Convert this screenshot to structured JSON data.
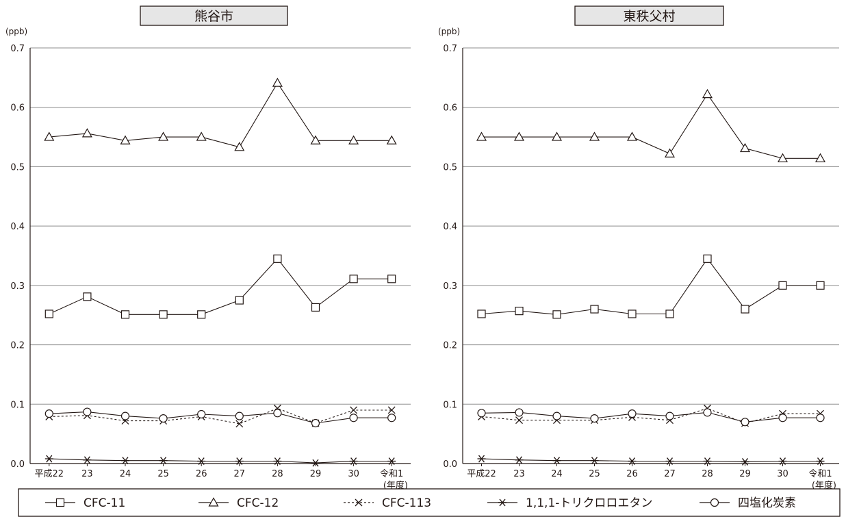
{
  "chart_data": [
    {
      "type": "line",
      "title": "熊谷市",
      "unit_label": "(ppb)",
      "xunit_label": "(年度)",
      "categories": [
        "平成22",
        "23",
        "24",
        "25",
        "26",
        "27",
        "28",
        "29",
        "30",
        "令和1"
      ],
      "ylim": [
        0,
        0.7
      ],
      "yticks": [
        "0.0",
        "0.1",
        "0.2",
        "0.3",
        "0.4",
        "0.5",
        "0.6",
        "0.7"
      ],
      "grid": true,
      "series": [
        {
          "name": "CFC-11",
          "marker": "square",
          "dash": "solid",
          "values": [
            0.252,
            0.281,
            0.251,
            0.251,
            0.251,
            0.275,
            0.345,
            0.263,
            0.311,
            0.311
          ]
        },
        {
          "name": "CFC-12",
          "marker": "triangle",
          "dash": "solid",
          "values": [
            0.55,
            0.556,
            0.544,
            0.55,
            0.55,
            0.533,
            0.641,
            0.544,
            0.544,
            0.544
          ]
        },
        {
          "name": "CFC-113",
          "marker": "cross",
          "dash": "dotted",
          "values": [
            0.079,
            0.081,
            0.072,
            0.072,
            0.079,
            0.067,
            0.093,
            0.068,
            0.09,
            0.09
          ]
        },
        {
          "name": "1,1,1-トリクロロエタン",
          "marker": "asterisk",
          "dash": "solid",
          "values": [
            0.008,
            0.006,
            0.005,
            0.005,
            0.004,
            0.004,
            0.004,
            0.001,
            0.004,
            0.004
          ]
        },
        {
          "name": "四塩化炭素",
          "marker": "circle",
          "dash": "solid",
          "values": [
            0.084,
            0.087,
            0.08,
            0.076,
            0.083,
            0.08,
            0.085,
            0.068,
            0.077,
            0.077
          ]
        }
      ]
    },
    {
      "type": "line",
      "title": "東秩父村",
      "unit_label": "(ppb)",
      "xunit_label": "(年度)",
      "categories": [
        "平成22",
        "23",
        "24",
        "25",
        "26",
        "27",
        "28",
        "29",
        "30",
        "令和1"
      ],
      "ylim": [
        0,
        0.7
      ],
      "yticks": [
        "0.0",
        "0.1",
        "0.2",
        "0.3",
        "0.4",
        "0.5",
        "0.6",
        "0.7"
      ],
      "grid": true,
      "series": [
        {
          "name": "CFC-11",
          "marker": "square",
          "dash": "solid",
          "values": [
            0.252,
            0.257,
            0.251,
            0.26,
            0.252,
            0.252,
            0.345,
            0.26,
            0.3,
            0.3
          ]
        },
        {
          "name": "CFC-12",
          "marker": "triangle",
          "dash": "solid",
          "values": [
            0.55,
            0.55,
            0.55,
            0.55,
            0.55,
            0.522,
            0.622,
            0.531,
            0.514,
            0.514
          ]
        },
        {
          "name": "CFC-113",
          "marker": "cross",
          "dash": "dotted",
          "values": [
            0.079,
            0.073,
            0.073,
            0.073,
            0.078,
            0.073,
            0.093,
            0.068,
            0.084,
            0.084
          ]
        },
        {
          "name": "1,1,1-トリクロロエタン",
          "marker": "asterisk",
          "dash": "solid",
          "values": [
            0.008,
            0.006,
            0.005,
            0.005,
            0.004,
            0.004,
            0.004,
            0.003,
            0.004,
            0.004
          ]
        },
        {
          "name": "四塩化炭素",
          "marker": "circle",
          "dash": "solid",
          "values": [
            0.085,
            0.086,
            0.08,
            0.076,
            0.084,
            0.08,
            0.086,
            0.07,
            0.077,
            0.077
          ]
        }
      ]
    }
  ],
  "legend": {
    "placement": "bottom",
    "items": [
      {
        "label": "CFC-11",
        "marker": "square",
        "dash": "solid"
      },
      {
        "label": "CFC-12",
        "marker": "triangle",
        "dash": "solid"
      },
      {
        "label": "CFC-113",
        "marker": "cross",
        "dash": "dotted"
      },
      {
        "label": "1,1,1-トリクロロエタン",
        "marker": "asterisk",
        "dash": "solid"
      },
      {
        "label": "四塩化炭素",
        "marker": "circle",
        "dash": "solid"
      }
    ]
  },
  "colors": {
    "ink": "#231815",
    "grid": "#8c8c8c",
    "title_box": "#e6e6e6",
    "background": "#ffffff"
  }
}
